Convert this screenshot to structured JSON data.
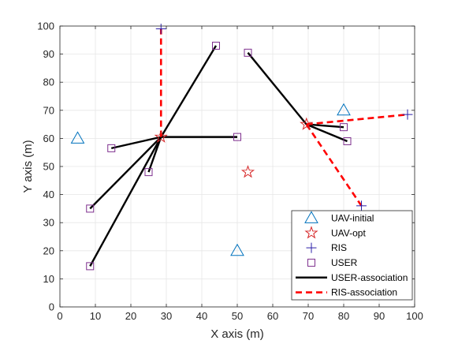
{
  "chart_data": {
    "type": "scatter",
    "title": "",
    "xlabel": "X axis (m)",
    "ylabel": "Y axis (m)",
    "xlim": [
      0,
      100
    ],
    "ylim": [
      0,
      100
    ],
    "xticks": [
      0,
      10,
      20,
      30,
      40,
      50,
      60,
      70,
      80,
      90,
      100
    ],
    "yticks": [
      0,
      10,
      20,
      30,
      40,
      50,
      60,
      70,
      80,
      90,
      100
    ],
    "xtick_labels": [
      "0",
      "10",
      "20",
      "30",
      "40",
      "50",
      "60",
      "70",
      "80",
      "90",
      "100"
    ],
    "ytick_labels": [
      "0",
      "10",
      "20",
      "30",
      "40",
      "50",
      "60",
      "70",
      "80",
      "90",
      "100"
    ],
    "grid": true,
    "legend_position": "bottom-right",
    "series": [
      {
        "name": "UAV-initial",
        "marker": "triangle",
        "color": "#0072BD",
        "points": [
          [
            5,
            60
          ],
          [
            80,
            70
          ],
          [
            50,
            20
          ]
        ]
      },
      {
        "name": "UAV-opt",
        "marker": "star",
        "color": "#D62728",
        "points": [
          [
            28.5,
            60.5
          ],
          [
            69.5,
            65
          ],
          [
            53,
            48
          ]
        ]
      },
      {
        "name": "RIS",
        "marker": "plus",
        "color": "#2B1FA8",
        "points": [
          [
            28.5,
            99
          ],
          [
            98,
            68.5
          ],
          [
            85,
            36
          ]
        ]
      },
      {
        "name": "USER",
        "marker": "square",
        "color": "#7E2F8E",
        "points": [
          [
            14.5,
            56.5
          ],
          [
            25,
            48
          ],
          [
            8.5,
            35
          ],
          [
            8.5,
            14.5
          ],
          [
            44,
            93
          ],
          [
            50,
            60.5
          ],
          [
            53,
            90.5
          ],
          [
            80,
            64
          ],
          [
            81,
            59
          ]
        ]
      },
      {
        "name": "USER-association",
        "style": "solid",
        "color": "#000000",
        "segments": [
          [
            [
              28.5,
              60.5
            ],
            [
              14.5,
              56.5
            ]
          ],
          [
            [
              28.5,
              60.5
            ],
            [
              25,
              48
            ]
          ],
          [
            [
              28.5,
              60.5
            ],
            [
              8.5,
              35
            ]
          ],
          [
            [
              28.5,
              60.5
            ],
            [
              8.5,
              14.5
            ]
          ],
          [
            [
              28.5,
              60.5
            ],
            [
              44,
              93
            ]
          ],
          [
            [
              28.5,
              60.5
            ],
            [
              50,
              60.5
            ]
          ],
          [
            [
              69.5,
              65
            ],
            [
              53,
              90.5
            ]
          ],
          [
            [
              69.5,
              65
            ],
            [
              80,
              64
            ]
          ],
          [
            [
              69.5,
              65
            ],
            [
              81,
              59
            ]
          ]
        ]
      },
      {
        "name": "RIS-association",
        "style": "dashed",
        "color": "#FF0000",
        "segments": [
          [
            [
              28.5,
              60.5
            ],
            [
              28.5,
              99
            ]
          ],
          [
            [
              69.5,
              65
            ],
            [
              98,
              68.5
            ]
          ],
          [
            [
              69.5,
              65
            ],
            [
              85,
              36
            ]
          ]
        ]
      }
    ]
  }
}
